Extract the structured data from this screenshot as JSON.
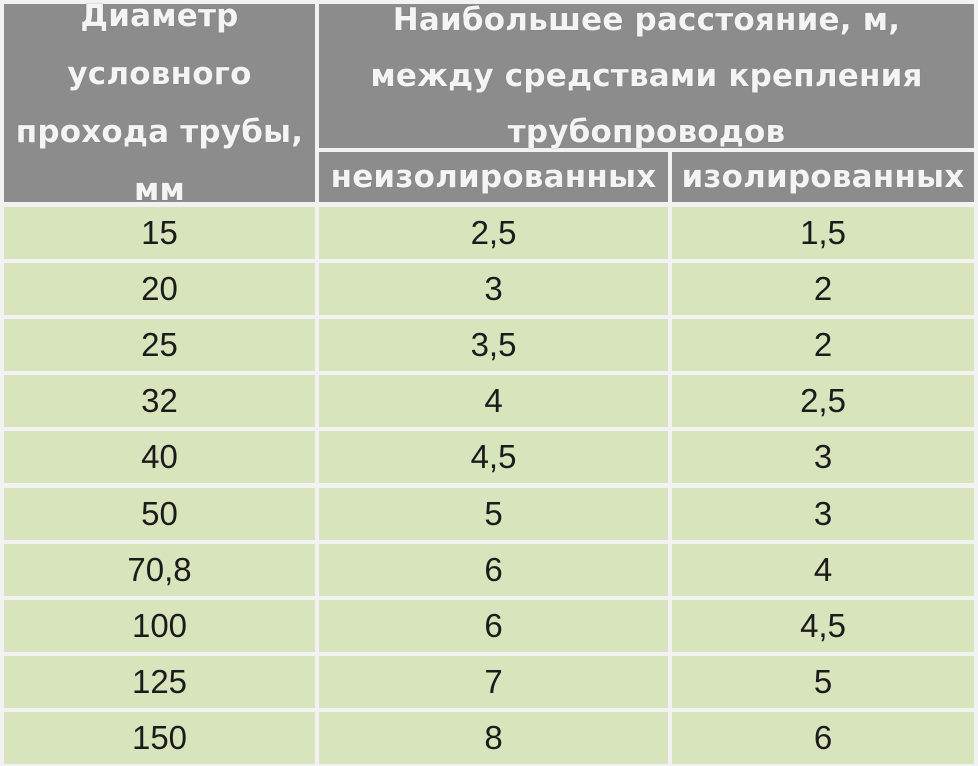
{
  "table": {
    "header": {
      "diameter": "Диаметр условного прохода трубы, мм",
      "distance": "Наибольшее расстояние, м, между средствами крепления трубопроводов",
      "uninsulated": "неизолированных",
      "insulated": "изолированных"
    },
    "rows": [
      {
        "diameter": "15",
        "uninsulated": "2,5",
        "insulated": "1,5"
      },
      {
        "diameter": "20",
        "uninsulated": "3",
        "insulated": "2"
      },
      {
        "diameter": "25",
        "uninsulated": "3,5",
        "insulated": "2"
      },
      {
        "diameter": "32",
        "uninsulated": "4",
        "insulated": "2,5"
      },
      {
        "diameter": "40",
        "uninsulated": "4,5",
        "insulated": "3"
      },
      {
        "diameter": "50",
        "uninsulated": "5",
        "insulated": "3"
      },
      {
        "diameter": "70,8",
        "uninsulated": "6",
        "insulated": "4"
      },
      {
        "diameter": "100",
        "uninsulated": "6",
        "insulated": "4,5"
      },
      {
        "diameter": "125",
        "uninsulated": "7",
        "insulated": "5"
      },
      {
        "diameter": "150",
        "uninsulated": "8",
        "insulated": "6"
      }
    ]
  },
  "colors": {
    "header_bg": "#8c8c8c",
    "header_text": "#f4f4f4",
    "row_bg": "#d8e4bc",
    "grid": "#f2f2f2"
  }
}
